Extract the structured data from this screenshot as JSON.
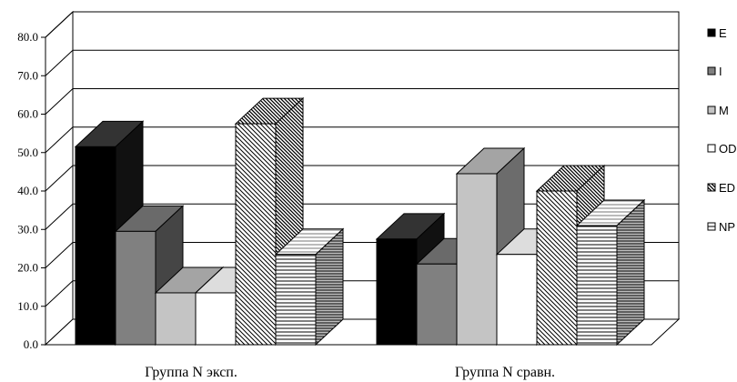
{
  "chart_data": {
    "type": "bar",
    "title": "",
    "xlabel": "",
    "ylabel": "",
    "ylim": [
      0,
      80
    ],
    "yticks": [
      "0.0",
      "10.0",
      "20.0",
      "30.0",
      "40.0",
      "50.0",
      "60.0",
      "70.0",
      "80.0"
    ],
    "categories": [
      "Группа N эксп.",
      "Группа N сравн."
    ],
    "series": [
      {
        "name": "E",
        "values": [
          51.5,
          27.5
        ]
      },
      {
        "name": "I",
        "values": [
          29.5,
          21.0
        ]
      },
      {
        "name": "M",
        "values": [
          13.5,
          44.5
        ]
      },
      {
        "name": "OD",
        "values": [
          13.5,
          23.5
        ]
      },
      {
        "name": "ED",
        "values": [
          57.5,
          40.0
        ]
      },
      {
        "name": "NP",
        "values": [
          23.5,
          31.0
        ]
      }
    ],
    "grid": true,
    "legend_position": "right",
    "colors": {
      "E": {
        "front": "#000000",
        "top": "#333333",
        "side": "#111111"
      },
      "I": {
        "front": "#808080",
        "top": "#6a6a6a",
        "side": "#454545"
      },
      "M": {
        "front": "#c4c4c4",
        "top": "#a4a4a4",
        "side": "#6c6c6c"
      },
      "OD": {
        "front": "#ffffff",
        "top": "#dddddd",
        "side": "#bdbdbd"
      },
      "ED": {
        "front": "hatch-diag",
        "top": "hatch-diag",
        "side": "hatch-diag"
      },
      "NP": {
        "front": "hatch-horiz",
        "top": "hatch-horiz-light",
        "side": "hatch-horiz-dark"
      }
    }
  }
}
